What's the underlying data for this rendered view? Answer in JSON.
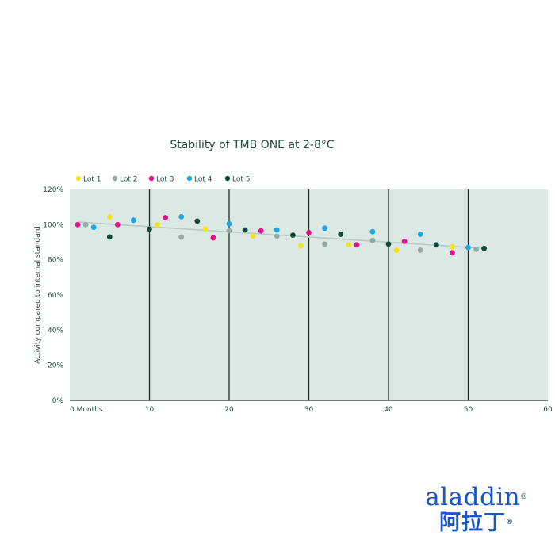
{
  "chart_data": {
    "type": "scatter",
    "title": "Stability of TMB ONE at 2-8°C",
    "xlabel": "",
    "ylabel": "Activity compared to internal standard",
    "xlim": [
      0,
      60
    ],
    "ylim": [
      0,
      120
    ],
    "x_ticks": [
      0,
      10,
      20,
      30,
      40,
      50,
      60
    ],
    "x_tick_labels": [
      "0 Months",
      "10",
      "20",
      "30",
      "40",
      "50",
      "60"
    ],
    "y_ticks": [
      0,
      20,
      40,
      60,
      80,
      100,
      120
    ],
    "y_tick_labels": [
      "0%",
      "20%",
      "40%",
      "60%",
      "80%",
      "100%",
      "120%"
    ],
    "vertical_lines": [
      10,
      20,
      30,
      40,
      50
    ],
    "legend_position": "top-left",
    "background": "#dce8e4",
    "trendline": {
      "x": [
        1,
        52
      ],
      "y": [
        101.5,
        86.5
      ],
      "color": "#b9c9c3"
    },
    "series": [
      {
        "name": "Lot 1",
        "color": "#f2e51f",
        "x": [
          5,
          11,
          17,
          23,
          29,
          35,
          41,
          48
        ],
        "y": [
          104.5,
          100,
          97.5,
          93.5,
          88,
          88.5,
          85.5,
          87.5
        ]
      },
      {
        "name": "Lot 2",
        "color": "#93aba4",
        "x": [
          2,
          8,
          14,
          20,
          26,
          32,
          38,
          44,
          51
        ],
        "y": [
          100,
          102.5,
          93,
          96.5,
          93.5,
          89,
          91,
          85.5,
          86
        ]
      },
      {
        "name": "Lot 3",
        "color": "#e3128c",
        "x": [
          1,
          6,
          12,
          18,
          24,
          30,
          36,
          42,
          48
        ],
        "y": [
          100,
          100,
          104,
          92.5,
          96.5,
          95.5,
          88.5,
          90.5,
          84
        ]
      },
      {
        "name": "Lot 4",
        "color": "#1aa6e8",
        "x": [
          3,
          8,
          14,
          20,
          26,
          32,
          38,
          44,
          50
        ],
        "y": [
          98.5,
          102.5,
          104.5,
          100.5,
          97,
          98,
          96,
          94.5,
          87
        ]
      },
      {
        "name": "Lot 5",
        "color": "#0e4a3a",
        "x": [
          5,
          10,
          16,
          22,
          28,
          34,
          40,
          46,
          52
        ],
        "y": [
          93,
          97.5,
          102,
          97,
          94,
          94.5,
          89,
          88.5,
          86.5
        ]
      }
    ]
  },
  "logo": {
    "latin": "aladdin",
    "chinese": "阿拉丁",
    "registered": "®",
    "color": "#1b55c7"
  }
}
